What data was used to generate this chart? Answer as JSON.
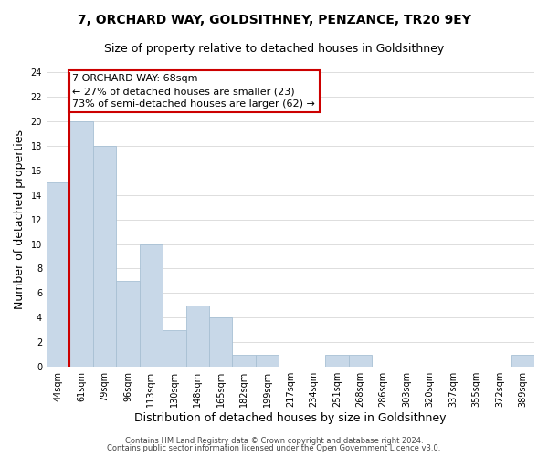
{
  "title": "7, ORCHARD WAY, GOLDSITHNEY, PENZANCE, TR20 9EY",
  "subtitle": "Size of property relative to detached houses in Goldsithney",
  "xlabel": "Distribution of detached houses by size in Goldsithney",
  "ylabel": "Number of detached properties",
  "bin_labels": [
    "44sqm",
    "61sqm",
    "79sqm",
    "96sqm",
    "113sqm",
    "130sqm",
    "148sqm",
    "165sqm",
    "182sqm",
    "199sqm",
    "217sqm",
    "234sqm",
    "251sqm",
    "268sqm",
    "286sqm",
    "303sqm",
    "320sqm",
    "337sqm",
    "355sqm",
    "372sqm",
    "389sqm"
  ],
  "bar_heights": [
    15,
    20,
    18,
    7,
    10,
    3,
    5,
    4,
    1,
    1,
    0,
    0,
    1,
    1,
    0,
    0,
    0,
    0,
    0,
    0,
    1
  ],
  "bar_color": "#c8d8e8",
  "bar_edge_color": "#a8c0d4",
  "grid_color": "#d8d8d8",
  "vline_x": 0.5,
  "vline_color": "#cc0000",
  "annotation_line1": "7 ORCHARD WAY: 68sqm",
  "annotation_line2": "← 27% of detached houses are smaller (23)",
  "annotation_line3": "73% of semi-detached houses are larger (62) →",
  "ylim": [
    0,
    24
  ],
  "yticks": [
    0,
    2,
    4,
    6,
    8,
    10,
    12,
    14,
    16,
    18,
    20,
    22,
    24
  ],
  "footer_line1": "Contains HM Land Registry data © Crown copyright and database right 2024.",
  "footer_line2": "Contains public sector information licensed under the Open Government Licence v3.0.",
  "background_color": "#ffffff",
  "title_fontsize": 10,
  "subtitle_fontsize": 9,
  "axis_label_fontsize": 9,
  "tick_fontsize": 7,
  "annotation_fontsize": 8,
  "footer_fontsize": 6
}
